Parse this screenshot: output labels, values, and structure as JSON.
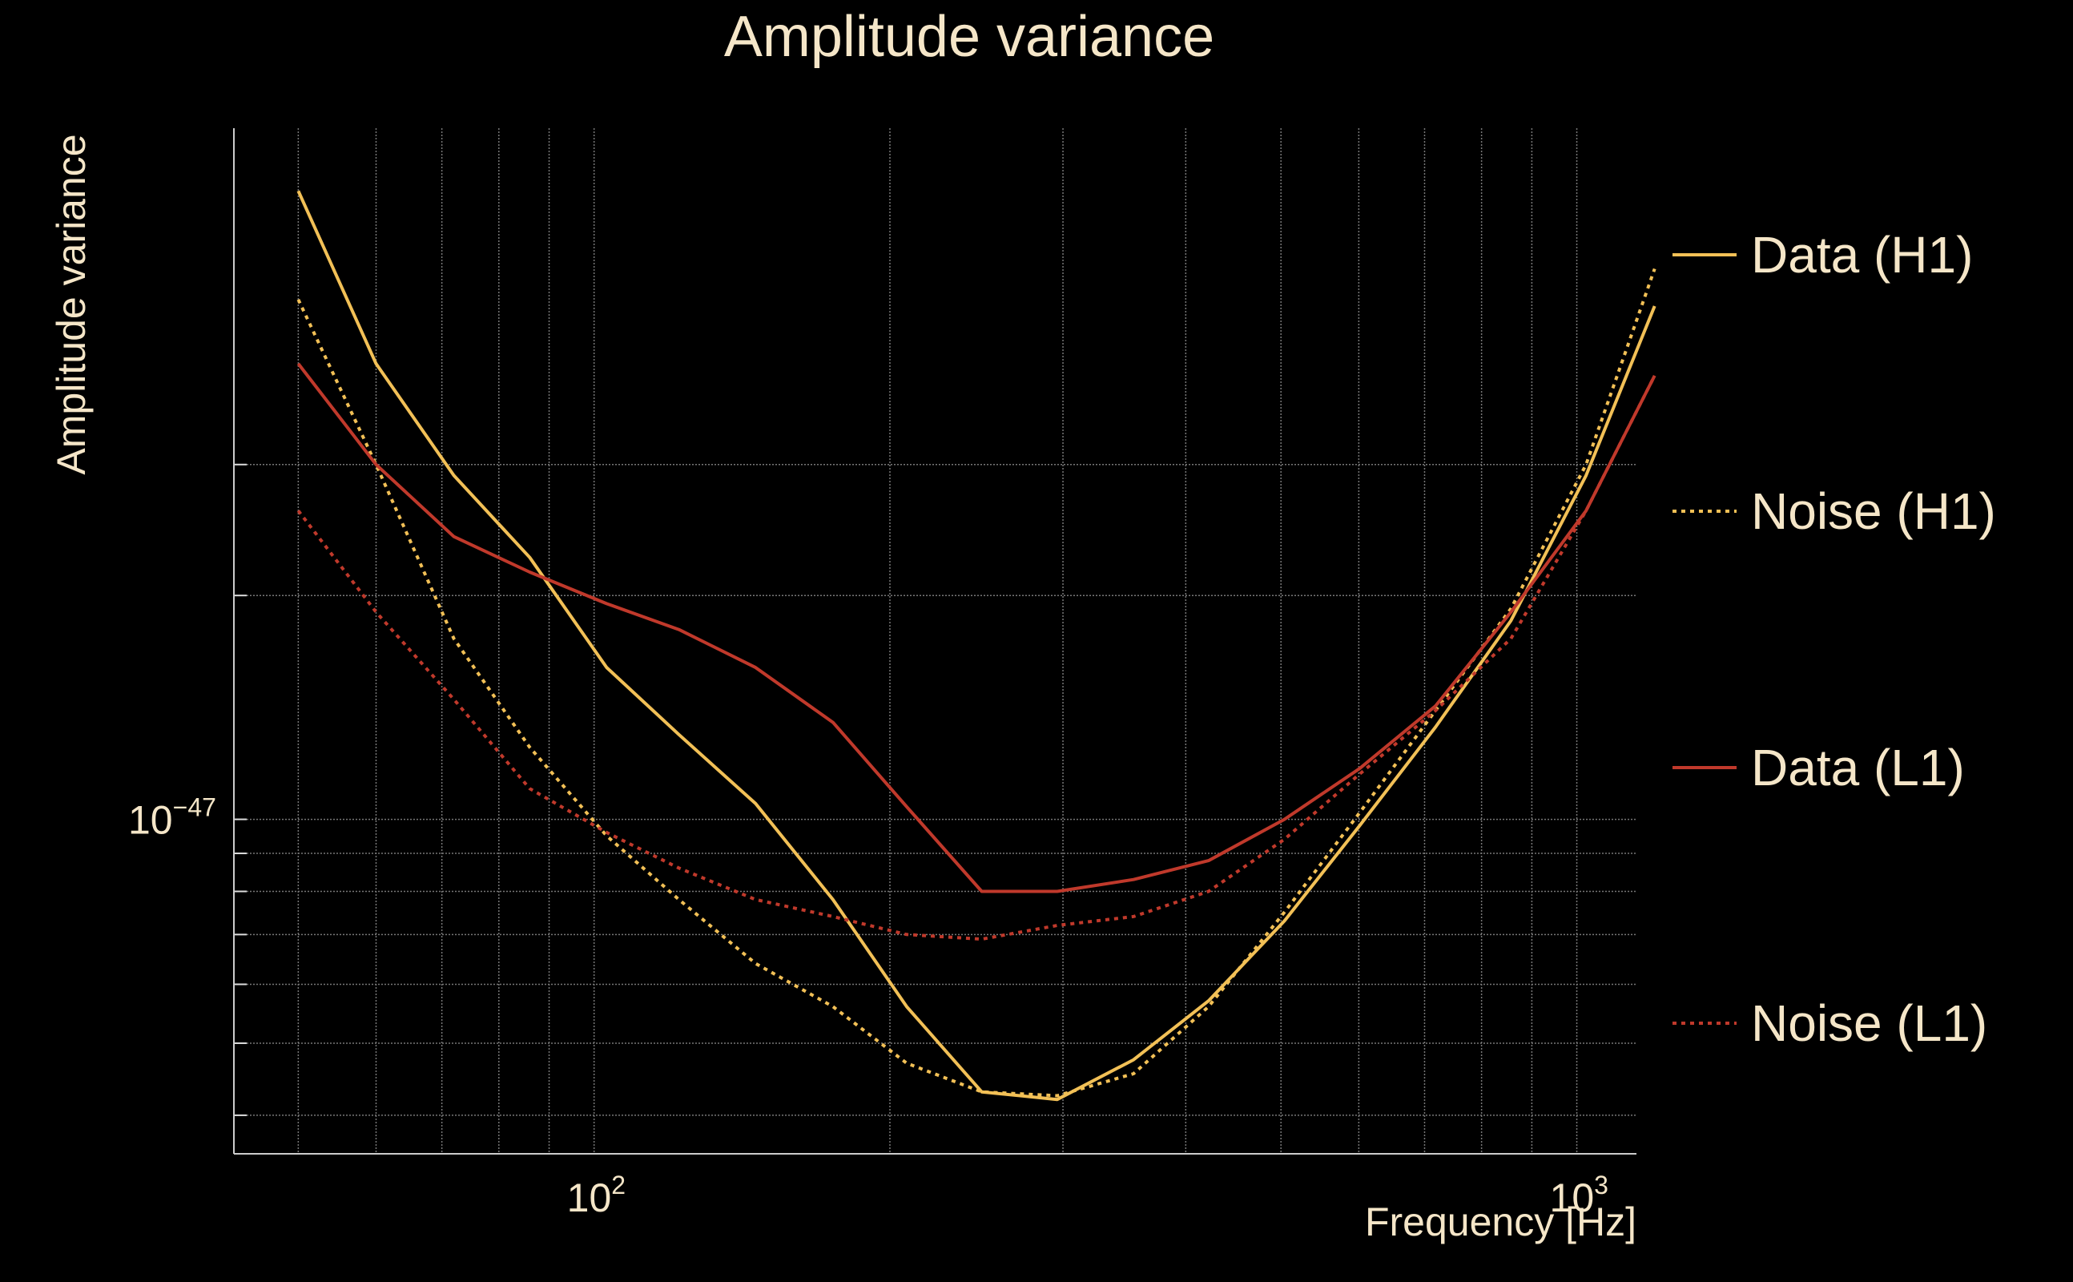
{
  "chart_data": {
    "type": "line",
    "title": "Amplitude variance",
    "xlabel": "Frequency [Hz]",
    "ylabel": "Amplitude variance",
    "xscale": "log",
    "yscale": "log",
    "xlim": [
      43,
      1150
    ],
    "ylim": [
      3.55e-48,
      8.5e-47
    ],
    "grid": true,
    "legend_position": "right",
    "x_tick_labels": [
      {
        "base": "10",
        "exp": "2",
        "value": 100
      },
      {
        "base": "10",
        "exp": "3",
        "value": 1000
      }
    ],
    "y_tick_labels": [
      {
        "base": "10",
        "exp": "−47",
        "value": 1e-47
      }
    ],
    "x": [
      50,
      60,
      72,
      86,
      103,
      122,
      146,
      175,
      208,
      248,
      296,
      354,
      422,
      504,
      601,
      718,
      857,
      1022,
      1200
    ],
    "series": [
      {
        "name": "Data (H1)",
        "color": "#f2c056",
        "style": "solid",
        "values": [
          7e-47,
          4.1e-47,
          2.9e-47,
          2.25e-47,
          1.6e-47,
          1.3e-47,
          1.05e-47,
          7.8e-48,
          5.6e-48,
          4.3e-48,
          4.2e-48,
          4.75e-48,
          5.7e-48,
          7.3e-48,
          9.8e-48,
          1.33e-47,
          1.85e-47,
          2.9e-47,
          4.9e-47
        ]
      },
      {
        "name": "Noise (H1)",
        "color": "#f2c056",
        "style": "dotted",
        "values": [
          5e-47,
          3e-47,
          1.75e-47,
          1.25e-47,
          9.5e-48,
          7.8e-48,
          6.4e-48,
          5.6e-48,
          4.7e-48,
          4.3e-48,
          4.25e-48,
          4.55e-48,
          5.6e-48,
          7.5e-48,
          1.02e-47,
          1.4e-47,
          1.92e-47,
          3e-47,
          5.5e-47
        ]
      },
      {
        "name": "Data (L1)",
        "color": "#c0392b",
        "style": "solid",
        "values": [
          4.1e-47,
          3e-47,
          2.4e-47,
          2.15e-47,
          1.95e-47,
          1.8e-47,
          1.6e-47,
          1.35e-47,
          1.04e-47,
          8e-48,
          8e-48,
          8.3e-48,
          8.8e-48,
          1e-47,
          1.17e-47,
          1.42e-47,
          1.9e-47,
          2.6e-47,
          3.95e-47
        ]
      },
      {
        "name": "Noise (L1)",
        "color": "#c0392b",
        "style": "dotted",
        "values": [
          2.6e-47,
          1.9e-47,
          1.45e-47,
          1.1e-47,
          9.6e-48,
          8.6e-48,
          7.8e-48,
          7.4e-48,
          7e-48,
          6.9e-48,
          7.2e-48,
          7.4e-48,
          8e-48,
          9.4e-48,
          1.15e-47,
          1.4e-47,
          1.75e-47,
          2.6e-47,
          3.95e-47
        ]
      }
    ]
  }
}
